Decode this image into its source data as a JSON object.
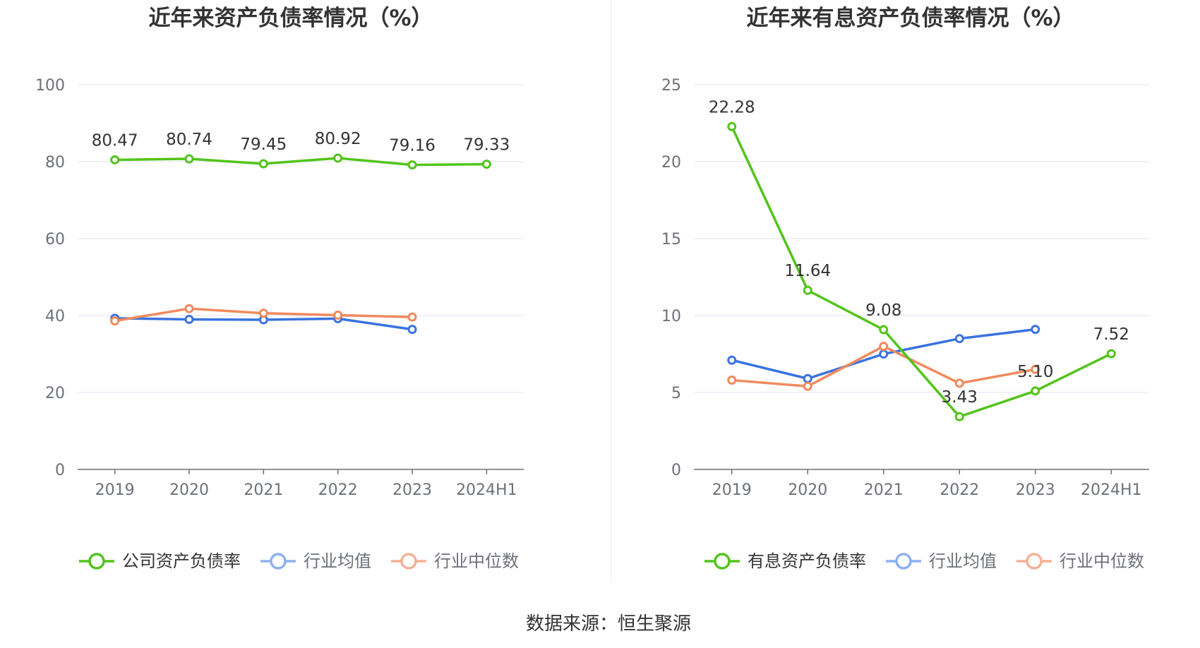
{
  "source_text": "数据来源：恒生聚源",
  "colors": {
    "series_main": "#52c41a",
    "series_avg": "#3a72e0",
    "series_median": "#f08a5d",
    "legend_avg": "#8db0f0",
    "legend_median": "#f5b096",
    "grid": "#e1e6f0",
    "axis": "#6e7079",
    "tick_text": "#6e7079",
    "title_text": "#333333",
    "divider": "#eeeeee"
  },
  "chart_data": [
    {
      "type": "line",
      "title": "近年来资产负债率情况（%）",
      "categories": [
        "2019",
        "2020",
        "2021",
        "2022",
        "2023",
        "2024H1"
      ],
      "ylim": [
        0,
        100
      ],
      "yticks": [
        0,
        20,
        40,
        60,
        80,
        100
      ],
      "grid": true,
      "legend_position": "bottom",
      "series": [
        {
          "name": "公司资产负债率",
          "values": [
            80.47,
            80.74,
            79.45,
            80.92,
            79.16,
            79.33
          ],
          "labels": [
            "80.47",
            "80.74",
            "79.45",
            "80.92",
            "79.16",
            "79.33"
          ]
        },
        {
          "name": "行业均值",
          "values": [
            39.3,
            39.0,
            38.9,
            39.2,
            36.4,
            null
          ]
        },
        {
          "name": "行业中位数",
          "values": [
            38.6,
            41.8,
            40.6,
            40.1,
            39.6,
            null
          ]
        }
      ]
    },
    {
      "type": "line",
      "title": "近年来有息资产负债率情况（%）",
      "categories": [
        "2019",
        "2020",
        "2021",
        "2022",
        "2023",
        "2024H1"
      ],
      "ylim": [
        0,
        25
      ],
      "yticks": [
        0,
        5,
        10,
        15,
        20,
        25
      ],
      "grid": true,
      "legend_position": "bottom",
      "series": [
        {
          "name": "有息资产负债率",
          "values": [
            22.28,
            11.64,
            9.08,
            3.43,
            5.1,
            7.52
          ],
          "labels": [
            "22.28",
            "11.64",
            "9.08",
            "3.43",
            "5.10",
            "7.52"
          ]
        },
        {
          "name": "行业均值",
          "values": [
            7.1,
            5.9,
            7.5,
            8.5,
            9.1,
            null
          ]
        },
        {
          "name": "行业中位数",
          "values": [
            5.8,
            5.4,
            8.0,
            5.6,
            6.5,
            null
          ]
        }
      ]
    }
  ]
}
